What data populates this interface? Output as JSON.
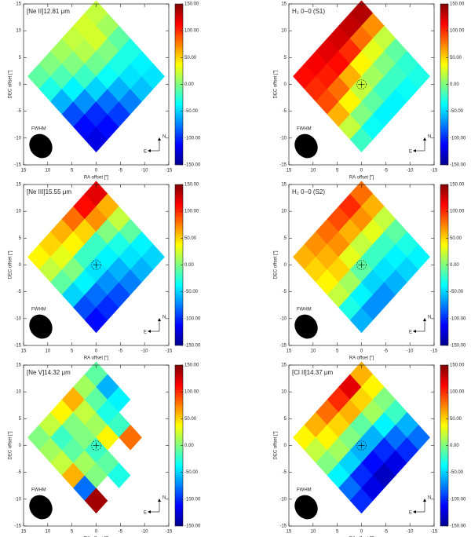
{
  "chart_data": [
    {
      "type": "heatmap",
      "title": "[Ne II]12.81 μm",
      "xlabel": "RA offset [″]",
      "ylabel": "DEC offset [″]",
      "xlim": [
        15,
        -15
      ],
      "ylim": [
        -15,
        15
      ],
      "xticks": [
        15,
        10,
        5,
        0,
        -5,
        -10,
        -15
      ],
      "yticks": [
        -15,
        -10,
        -5,
        0,
        5,
        10,
        15
      ],
      "zlim": [
        -150,
        150
      ],
      "zticks": [
        {
          "value": 150,
          "label": "150.00"
        },
        {
          "value": 100,
          "label": "100.00"
        },
        {
          "value": 50,
          "label": "50.00"
        },
        {
          "value": 0,
          "label": "0.00"
        },
        {
          "value": -50,
          "label": "-50.00"
        },
        {
          "value": -100,
          "label": "-100.00"
        },
        {
          "value": -150,
          "label": "-150.00"
        }
      ],
      "colormap": "jet",
      "beam_label": "FWHM",
      "compass": [
        "N",
        "E"
      ],
      "center_marker": false,
      "z": [
        [
          -10,
          0,
          10,
          20,
          25,
          20
        ],
        [
          -30,
          -15,
          0,
          15,
          25,
          10
        ],
        [
          -60,
          -40,
          -20,
          -5,
          0,
          -10
        ],
        [
          -90,
          -70,
          -50,
          -35,
          -30,
          -30
        ],
        [
          -110,
          -100,
          -80,
          -60,
          -45,
          -40
        ],
        [
          -120,
          -110,
          -95,
          -75,
          -55,
          -45
        ]
      ]
    },
    {
      "type": "heatmap",
      "title": "H₂ 0−0 (S1)",
      "xlabel": "RA offset [″]",
      "ylabel": "DEC offset [″]",
      "xlim": [
        15,
        -15
      ],
      "ylim": [
        -15,
        15
      ],
      "xticks": [
        15,
        10,
        5,
        0,
        -5,
        -10,
        -15
      ],
      "yticks": [
        -15,
        -10,
        -5,
        0,
        5,
        10,
        15
      ],
      "zlim": [
        -150,
        150
      ],
      "zticks": [
        {
          "value": 150,
          "label": "150.00"
        },
        {
          "value": 100,
          "label": "100.00"
        },
        {
          "value": 50,
          "label": "50.00"
        },
        {
          "value": 0,
          "label": "0.00"
        },
        {
          "value": -50,
          "label": "-50.00"
        },
        {
          "value": -100,
          "label": "-100.00"
        },
        {
          "value": -150,
          "label": "-150.00"
        }
      ],
      "colormap": "jet",
      "beam_label": "FWHM",
      "compass": [
        "N",
        "E"
      ],
      "center_marker": true,
      "z": [
        [
          110,
          115,
          120,
          125,
          130,
          135
        ],
        [
          100,
          105,
          110,
          100,
          80,
          70
        ],
        [
          90,
          80,
          60,
          40,
          30,
          20
        ],
        [
          60,
          40,
          20,
          10,
          0,
          -10
        ],
        [
          20,
          0,
          -10,
          -20,
          -20,
          -25
        ],
        [
          -20,
          -35,
          -40,
          -40,
          -35,
          -30
        ]
      ]
    },
    {
      "type": "heatmap",
      "title": "[Ne III]15.55 μm",
      "xlabel": "RA offset [″]",
      "ylabel": "DEC offset [″]",
      "xlim": [
        15,
        -15
      ],
      "ylim": [
        -15,
        15
      ],
      "xticks": [
        15,
        10,
        5,
        0,
        -5,
        -10,
        -15
      ],
      "yticks": [
        -15,
        -10,
        -5,
        0,
        5,
        10,
        15
      ],
      "zlim": [
        -150,
        150
      ],
      "zticks": [
        {
          "value": 150,
          "label": "150.00"
        },
        {
          "value": 100,
          "label": "100.00"
        },
        {
          "value": 50,
          "label": "50.00"
        },
        {
          "value": 0,
          "label": "0.00"
        },
        {
          "value": -50,
          "label": "-50.00"
        },
        {
          "value": -100,
          "label": "-100.00"
        },
        {
          "value": -150,
          "label": "-150.00"
        }
      ],
      "colormap": "jet",
      "beam_label": "FWHM",
      "compass": [
        "N",
        "E"
      ],
      "center_marker": true,
      "z": [
        [
          40,
          50,
          60,
          80,
          110,
          120
        ],
        [
          20,
          30,
          40,
          50,
          70,
          60
        ],
        [
          -10,
          0,
          -20,
          -20,
          0,
          20
        ],
        [
          -50,
          -40,
          -45,
          -40,
          -30,
          -10
        ],
        [
          -90,
          -80,
          -70,
          -60,
          -45,
          -40
        ],
        [
          -110,
          -100,
          -90,
          -75,
          -60,
          -50
        ]
      ]
    },
    {
      "type": "heatmap",
      "title": "H₂ 0−0 (S2)",
      "xlabel": "RA offset [″]",
      "ylabel": "DEC offset [″]",
      "xlim": [
        15,
        -15
      ],
      "ylim": [
        -15,
        15
      ],
      "xticks": [
        15,
        10,
        5,
        0,
        -5,
        -10,
        -15
      ],
      "yticks": [
        -15,
        -10,
        -5,
        0,
        5,
        10,
        15
      ],
      "zlim": [
        -150,
        150
      ],
      "zticks": [
        {
          "value": 150,
          "label": "150.00"
        },
        {
          "value": 100,
          "label": "100.00"
        },
        {
          "value": 50,
          "label": "50.00"
        },
        {
          "value": 0,
          "label": "0.00"
        },
        {
          "value": -50,
          "label": "-50.00"
        },
        {
          "value": -100,
          "label": "-100.00"
        },
        {
          "value": -150,
          "label": "-150.00"
        }
      ],
      "colormap": "jet",
      "beam_label": "FWHM",
      "compass": [
        "N",
        "E"
      ],
      "center_marker": true,
      "z": [
        [
          60,
          70,
          80,
          90,
          100,
          80
        ],
        [
          50,
          60,
          70,
          60,
          70,
          60
        ],
        [
          40,
          50,
          30,
          20,
          30,
          20
        ],
        [
          20,
          10,
          -10,
          -20,
          -20,
          -10
        ],
        [
          -30,
          -40,
          -50,
          -45,
          -40,
          -30
        ],
        [
          -60,
          -70,
          -70,
          -60,
          -50,
          -40
        ]
      ]
    },
    {
      "type": "heatmap",
      "title": "[Ne V]14.32 μm",
      "xlabel": "RA offset [″]",
      "ylabel": "DEC offset [″]",
      "xlim": [
        15,
        -15
      ],
      "ylim": [
        -15,
        15
      ],
      "xticks": [
        15,
        10,
        5,
        0,
        -5,
        -10,
        -15
      ],
      "yticks": [
        -15,
        -10,
        -5,
        0,
        5,
        10,
        15
      ],
      "zlim": [
        -150,
        150
      ],
      "zticks": [
        {
          "value": 150,
          "label": "150.00"
        },
        {
          "value": 100,
          "label": "100.00"
        },
        {
          "value": 50,
          "label": "50.00"
        },
        {
          "value": 0,
          "label": "0.00"
        },
        {
          "value": -50,
          "label": "-50.00"
        },
        {
          "value": -100,
          "label": "-100.00"
        },
        {
          "value": -150,
          "label": "-150.00"
        }
      ],
      "colormap": "jet",
      "beam_label": "FWHM",
      "compass": [
        "N",
        "E"
      ],
      "center_marker": true,
      "z": [
        [
          0,
          20,
          40,
          60,
          10,
          -10
        ],
        [
          10,
          -20,
          0,
          20,
          -10,
          -60
        ],
        [
          20,
          -10,
          0,
          10,
          -30,
          -40
        ],
        [
          60,
          10,
          -20,
          40,
          -20,
          null
        ],
        [
          -80,
          0,
          -10,
          null,
          80,
          null
        ],
        [
          140,
          null,
          -30,
          null,
          null,
          null
        ]
      ]
    },
    {
      "type": "heatmap",
      "title": "[Cl II]14.37 μm",
      "xlabel": "RA offset [″]",
      "ylabel": "DEC offset [″]",
      "xlim": [
        15,
        -15
      ],
      "ylim": [
        -15,
        15
      ],
      "xticks": [
        15,
        10,
        5,
        0,
        -5,
        -10,
        -15
      ],
      "yticks": [
        -15,
        -10,
        -5,
        0,
        5,
        10,
        15
      ],
      "zlim": [
        -150,
        150
      ],
      "zticks": [
        {
          "value": 150,
          "label": "150.00"
        },
        {
          "value": 100,
          "label": "100.00"
        },
        {
          "value": 50,
          "label": "50.00"
        },
        {
          "value": 0,
          "label": "0.00"
        },
        {
          "value": -50,
          "label": "-50.00"
        },
        {
          "value": -100,
          "label": "-100.00"
        },
        {
          "value": -150,
          "label": "-150.00"
        }
      ],
      "colormap": "jet",
      "beam_label": "FWHM",
      "compass": [
        "N",
        "E"
      ],
      "center_marker": true,
      "z": [
        [
          40,
          60,
          80,
          100,
          120,
          60
        ],
        [
          20,
          40,
          50,
          60,
          50,
          40
        ],
        [
          0,
          10,
          0,
          -10,
          10,
          0
        ],
        [
          -40,
          -50,
          -60,
          -60,
          -40,
          -20
        ],
        [
          -80,
          -100,
          -110,
          -100,
          -80,
          -60
        ],
        [
          -100,
          -120,
          -130,
          -120,
          -100,
          -80
        ]
      ]
    }
  ]
}
